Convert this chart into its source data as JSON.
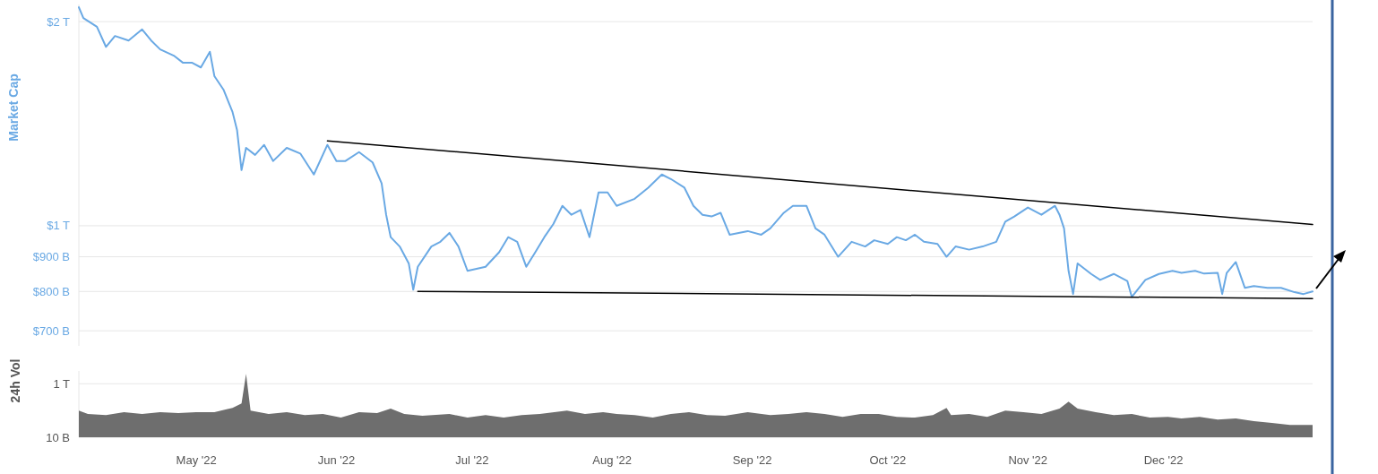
{
  "chart_data": [
    {
      "type": "line",
      "ylabel": "Market Cap",
      "log": "y",
      "grid": "y",
      "tick_labels": "y",
      "xlim": [
        "2022-04-05",
        "2023-01-03"
      ],
      "ylim": [
        665000000000.0,
        2120000000000.0
      ],
      "yticks": [
        {
          "value": 2000000000000.0,
          "label": "$2 T"
        },
        {
          "value": 1000000000000.0,
          "label": "$1 T"
        },
        {
          "value": 900000000000.0,
          "label": "$900 B"
        },
        {
          "value": 800000000000.0,
          "label": "$800 B"
        },
        {
          "value": 700000000000.0,
          "label": "$700 B"
        }
      ],
      "series": [
        {
          "color": "#6aa9e4",
          "x": [
            "2022-04-05",
            "2022-04-06",
            "2022-04-09",
            "2022-04-11",
            "2022-04-13",
            "2022-04-16",
            "2022-04-19",
            "2022-04-21",
            "2022-04-23",
            "2022-04-26",
            "2022-04-28",
            "2022-04-30",
            "2022-05-02",
            "2022-05-04",
            "2022-05-05",
            "2022-05-07",
            "2022-05-09",
            "2022-05-10",
            "2022-05-11",
            "2022-05-12",
            "2022-05-14",
            "2022-05-16",
            "2022-05-18",
            "2022-05-21",
            "2022-05-24",
            "2022-05-27",
            "2022-05-30",
            "2022-06-01",
            "2022-06-03",
            "2022-06-06",
            "2022-06-09",
            "2022-06-11",
            "2022-06-12",
            "2022-06-13",
            "2022-06-15",
            "2022-06-17",
            "2022-06-18",
            "2022-06-19",
            "2022-06-22",
            "2022-06-24",
            "2022-06-26",
            "2022-06-28",
            "2022-06-30",
            "2022-07-04",
            "2022-07-07",
            "2022-07-09",
            "2022-07-11",
            "2022-07-13",
            "2022-07-15",
            "2022-07-17",
            "2022-07-19",
            "2022-07-21",
            "2022-07-23",
            "2022-07-25",
            "2022-07-27",
            "2022-07-29",
            "2022-07-31",
            "2022-08-02",
            "2022-08-06",
            "2022-08-09",
            "2022-08-12",
            "2022-08-14",
            "2022-08-17",
            "2022-08-19",
            "2022-08-21",
            "2022-08-23",
            "2022-08-25",
            "2022-08-27",
            "2022-08-31",
            "2022-09-03",
            "2022-09-05",
            "2022-09-08",
            "2022-09-10",
            "2022-09-13",
            "2022-09-15",
            "2022-09-17",
            "2022-09-20",
            "2022-09-23",
            "2022-09-26",
            "2022-09-28",
            "2022-10-01",
            "2022-10-03",
            "2022-10-05",
            "2022-10-07",
            "2022-10-09",
            "2022-10-12",
            "2022-10-14",
            "2022-10-16",
            "2022-10-19",
            "2022-10-22",
            "2022-10-25",
            "2022-10-27",
            "2022-10-29",
            "2022-11-01",
            "2022-11-04",
            "2022-11-07",
            "2022-11-08",
            "2022-11-09",
            "2022-11-10",
            "2022-11-11",
            "2022-11-12",
            "2022-11-15",
            "2022-11-17",
            "2022-11-20",
            "2022-11-23",
            "2022-11-24",
            "2022-11-27",
            "2022-11-30",
            "2022-12-03",
            "2022-12-05",
            "2022-12-08",
            "2022-12-10",
            "2022-12-13",
            "2022-12-14",
            "2022-12-15",
            "2022-12-17",
            "2022-12-19",
            "2022-12-21",
            "2022-12-24",
            "2022-12-27",
            "2022-12-30",
            "2023-01-01",
            "2023-01-03"
          ],
          "values": [
            2100000000000.0,
            2025000000000.0,
            1965000000000.0,
            1836000000000.0,
            1905000000000.0,
            1876000000000.0,
            1948000000000.0,
            1876000000000.0,
            1820000000000.0,
            1782000000000.0,
            1740000000000.0,
            1740000000000.0,
            1712000000000.0,
            1805000000000.0,
            1662000000000.0,
            1588000000000.0,
            1472000000000.0,
            1385000000000.0,
            1208000000000.0,
            1303000000000.0,
            1272000000000.0,
            1316000000000.0,
            1246000000000.0,
            1303000000000.0,
            1278000000000.0,
            1190000000000.0,
            1316000000000.0,
            1246000000000.0,
            1246000000000.0,
            1284000000000.0,
            1240000000000.0,
            1155000000000.0,
            1038000000000.0,
            962000000000.0,
            932000000000.0,
            880000000000.0,
            805000000000.0,
            870000000000.0,
            932000000000.0,
            947000000000.0,
            976000000000.0,
            932000000000.0,
            858000000000.0,
            870000000000.0,
            914000000000.0,
            962000000000.0,
            947000000000.0,
            870000000000.0,
            914000000000.0,
            962000000000.0,
            1006000000000.0,
            1070000000000.0,
            1038000000000.0,
            1055000000000.0,
            962000000000.0,
            1120000000000.0,
            1120000000000.0,
            1070000000000.0,
            1096000000000.0,
            1138000000000.0,
            1190000000000.0,
            1172000000000.0,
            1138000000000.0,
            1070000000000.0,
            1038000000000.0,
            1032000000000.0,
            1045000000000.0,
            970000000000.0,
            982000000000.0,
            970000000000.0,
            991000000000.0,
            1045000000000.0,
            1070000000000.0,
            1070000000000.0,
            991000000000.0,
            970000000000.0,
            900000000000.0,
            947000000000.0,
            932000000000.0,
            952000000000.0,
            940000000000.0,
            962000000000.0,
            952000000000.0,
            970000000000.0,
            947000000000.0,
            940000000000.0,
            900000000000.0,
            932000000000.0,
            922000000000.0,
            932000000000.0,
            947000000000.0,
            1014000000000.0,
            1032000000000.0,
            1064000000000.0,
            1038000000000.0,
            1070000000000.0,
            1038000000000.0,
            991000000000.0,
            858000000000.0,
            793000000000.0,
            880000000000.0,
            849000000000.0,
            832000000000.0,
            849000000000.0,
            829000000000.0,
            785000000000.0,
            832000000000.0,
            849000000000.0,
            858000000000.0,
            852000000000.0,
            858000000000.0,
            850000000000.0,
            852000000000.0,
            793000000000.0,
            852000000000.0,
            884000000000.0,
            810000000000.0,
            815000000000.0,
            810000000000.0,
            810000000000.0,
            798000000000.0,
            793000000000.0,
            800000000000.0
          ]
        },
        {
          "color": "#000000",
          "x": [
            "2022-05-30",
            "2023-01-03"
          ],
          "values": [
            1334000000000.0,
            1004000000000.0
          ]
        },
        {
          "color": "#000000",
          "x": [
            "2022-06-19",
            "2023-01-03"
          ],
          "values": [
            800000000000.0,
            781000000000.0
          ]
        }
      ]
    },
    {
      "type": "area",
      "ylabel": "24h Vol",
      "log": "y",
      "grid": "y",
      "xlim": [
        "2022-04-05",
        "2023-01-03"
      ],
      "ylim": [
        10000000000.0,
        3000000000000.0
      ],
      "yticks": [
        {
          "value": 1000000000000.0,
          "label": "1 T"
        },
        {
          "value": 10000000000.0,
          "label": "10 B"
        }
      ],
      "xticks": [
        {
          "value": "2022-05-01",
          "label": "May '22"
        },
        {
          "value": "2022-06-01",
          "label": "Jun '22"
        },
        {
          "value": "2022-07-01",
          "label": "Jul '22"
        },
        {
          "value": "2022-08-01",
          "label": "Aug '22"
        },
        {
          "value": "2022-09-01",
          "label": "Sep '22"
        },
        {
          "value": "2022-10-01",
          "label": "Oct '22"
        },
        {
          "value": "2022-11-01",
          "label": "Nov '22"
        },
        {
          "value": "2022-12-01",
          "label": "Dec '22"
        }
      ],
      "series": [
        {
          "color": "#6e6e6e",
          "x": [
            "2022-04-05",
            "2022-04-07",
            "2022-04-11",
            "2022-04-15",
            "2022-04-19",
            "2022-04-23",
            "2022-04-27",
            "2022-05-01",
            "2022-05-05",
            "2022-05-09",
            "2022-05-11",
            "2022-05-12",
            "2022-05-13",
            "2022-05-17",
            "2022-05-21",
            "2022-05-25",
            "2022-05-29",
            "2022-06-02",
            "2022-06-06",
            "2022-06-10",
            "2022-06-13",
            "2022-06-16",
            "2022-06-20",
            "2022-06-26",
            "2022-06-30",
            "2022-07-04",
            "2022-07-08",
            "2022-07-12",
            "2022-07-16",
            "2022-07-22",
            "2022-07-26",
            "2022-07-30",
            "2022-08-02",
            "2022-08-06",
            "2022-08-10",
            "2022-08-14",
            "2022-08-18",
            "2022-08-22",
            "2022-08-26",
            "2022-08-31",
            "2022-09-05",
            "2022-09-09",
            "2022-09-13",
            "2022-09-17",
            "2022-09-21",
            "2022-09-25",
            "2022-09-29",
            "2022-10-03",
            "2022-10-07",
            "2022-10-11",
            "2022-10-14",
            "2022-10-15",
            "2022-10-19",
            "2022-10-23",
            "2022-10-27",
            "2022-10-31",
            "2022-11-04",
            "2022-11-08",
            "2022-11-10",
            "2022-11-12",
            "2022-11-16",
            "2022-11-20",
            "2022-11-24",
            "2022-11-28",
            "2022-12-02",
            "2022-12-05",
            "2022-12-09",
            "2022-12-13",
            "2022-12-17",
            "2022-12-21",
            "2022-12-25",
            "2022-12-29",
            "2023-01-03"
          ],
          "values": [
            100000000000.0,
            74000000000.0,
            68000000000.0,
            86000000000.0,
            74000000000.0,
            86000000000.0,
            80000000000.0,
            86000000000.0,
            86000000000.0,
            126000000000.0,
            185000000000.0,
            2320000000000.0,
            100000000000.0,
            74000000000.0,
            86000000000.0,
            68000000000.0,
            74000000000.0,
            54000000000.0,
            86000000000.0,
            80000000000.0,
            117000000000.0,
            74000000000.0,
            63000000000.0,
            74000000000.0,
            54000000000.0,
            68000000000.0,
            54000000000.0,
            68000000000.0,
            74000000000.0,
            100000000000.0,
            74000000000.0,
            86000000000.0,
            74000000000.0,
            68000000000.0,
            54000000000.0,
            74000000000.0,
            86000000000.0,
            68000000000.0,
            63000000000.0,
            86000000000.0,
            68000000000.0,
            74000000000.0,
            86000000000.0,
            74000000000.0,
            58000000000.0,
            74000000000.0,
            74000000000.0,
            58000000000.0,
            54000000000.0,
            68000000000.0,
            126000000000.0,
            68000000000.0,
            74000000000.0,
            58000000000.0,
            100000000000.0,
            86000000000.0,
            74000000000.0,
            117000000000.0,
            215000000000.0,
            117000000000.0,
            86000000000.0,
            68000000000.0,
            74000000000.0,
            54000000000.0,
            58000000000.0,
            50000000000.0,
            58000000000.0,
            46000000000.0,
            50000000000.0,
            40000000000.0,
            34000000000.0,
            29000000000.0,
            29000000000.0
          ]
        }
      ]
    }
  ]
}
